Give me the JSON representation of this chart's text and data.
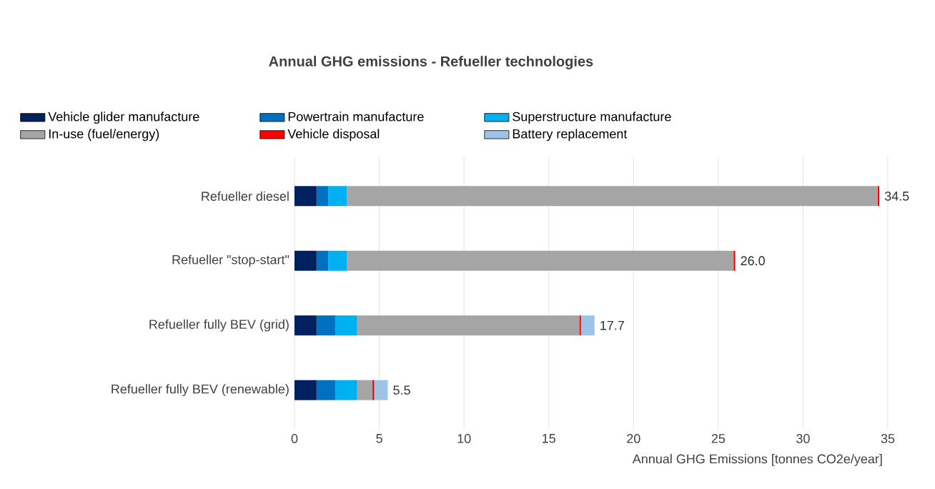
{
  "chart_data": {
    "type": "bar",
    "orientation": "horizontal",
    "stacked": true,
    "title": "Annual GHG emissions - Refueller technologies",
    "xlabel": "Annual GHG Emissions [tonnes CO2e/year]",
    "categories": [
      "Refueller diesel",
      "Refueller \"stop-start\"",
      "Refueller fully BEV (grid)",
      "Refueller fully BEV (renewable)"
    ],
    "series": [
      {
        "name": "Vehicle glider manufacture",
        "color": "#002060",
        "values": [
          1.3,
          1.3,
          1.3,
          1.3
        ]
      },
      {
        "name": "Powertrain manufacture",
        "color": "#0070c0",
        "values": [
          0.7,
          0.7,
          1.1,
          1.1
        ]
      },
      {
        "name": "Superstructure manufacture",
        "color": "#00b0f0",
        "values": [
          1.1,
          1.1,
          1.3,
          1.3
        ]
      },
      {
        "name": "In-use (fuel/energy)",
        "color": "#a5a5a5",
        "values": [
          31.3,
          22.8,
          13.1,
          0.9
        ]
      },
      {
        "name": "Vehicle disposal",
        "color": "#ff0000",
        "values": [
          0.1,
          0.1,
          0.1,
          0.1
        ]
      },
      {
        "name": "Battery replacement",
        "color": "#9dc3e6",
        "values": [
          null,
          null,
          0.8,
          0.8
        ]
      }
    ],
    "totals": [
      "34.5",
      "26.0",
      "17.7",
      "5.5"
    ],
    "xlim": [
      0,
      35
    ],
    "xticks": [
      0,
      5,
      10,
      15,
      20,
      25,
      30,
      35
    ],
    "grid": "x",
    "legend": "top"
  }
}
